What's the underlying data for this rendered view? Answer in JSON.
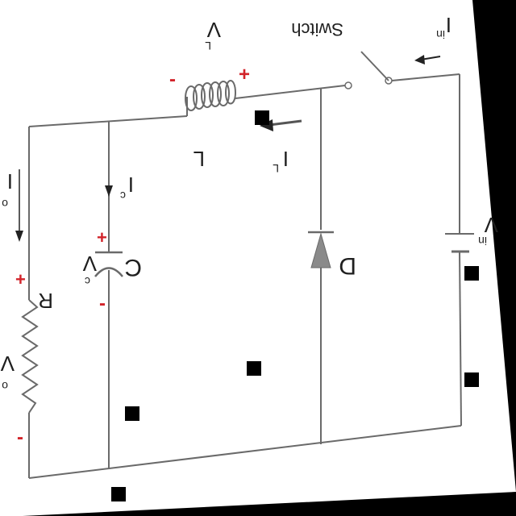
{
  "labels": {
    "switch": "Switch",
    "i_in": "I",
    "i_in_sub": "in",
    "v_l": "V",
    "v_l_sub": "L",
    "l": "L",
    "i_l": "I",
    "i_l_sub": "L",
    "i_o": "I",
    "i_o_sub": "o",
    "i_c": "I",
    "i_c_sub": "c",
    "c": "C",
    "v_c": "V",
    "v_c_sub": "c",
    "d": "D",
    "r": "R",
    "v_o": "V",
    "v_o_sub": "o",
    "v_in": "V",
    "v_in_sub": "in"
  },
  "signs": {
    "plus": "+",
    "minus": "-"
  },
  "colors": {
    "sign": "#d2232a",
    "wire": "#6a6a6a",
    "paper": "#ffffff"
  }
}
